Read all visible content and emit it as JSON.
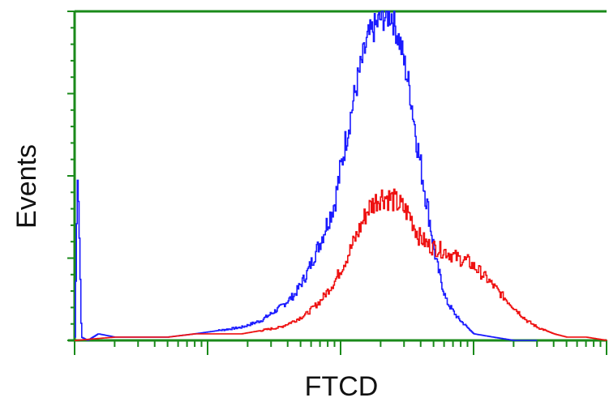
{
  "chart_data": {
    "type": "line",
    "title": "",
    "xlabel": "FTCD",
    "ylabel": "Events",
    "xscale": "log",
    "xlim": [
      1,
      10000
    ],
    "ylim": [
      0,
      100
    ],
    "grid": false,
    "legend": "none",
    "axis_color": "#1a8a1a",
    "series": [
      {
        "color": "#1a1aff",
        "x": [
          1,
          1.05,
          1.12,
          1.25,
          1.5,
          2,
          3,
          5,
          8,
          12,
          18,
          25,
          35,
          45,
          55,
          70,
          90,
          110,
          135,
          160,
          200,
          240,
          280,
          330,
          380,
          450,
          520,
          620,
          750,
          1000,
          1400,
          2000,
          3000
        ],
        "y": [
          1,
          55,
          1,
          0,
          2,
          1,
          1,
          1,
          2,
          3,
          4,
          6,
          10,
          14,
          20,
          30,
          42,
          62,
          80,
          92,
          98,
          99,
          90,
          76,
          58,
          40,
          24,
          12,
          7,
          2,
          1,
          0,
          0
        ]
      },
      {
        "color": "#ee1111",
        "x": [
          1,
          2,
          3,
          5,
          8,
          12,
          18,
          25,
          35,
          45,
          55,
          70,
          90,
          110,
          135,
          160,
          200,
          240,
          280,
          330,
          380,
          450,
          520,
          620,
          750,
          900,
          1100,
          1300,
          1600,
          2000,
          2500,
          3000,
          4000,
          5000,
          7000,
          10000
        ],
        "y": [
          0,
          1,
          1,
          1,
          2,
          2,
          2,
          3,
          4,
          6,
          8,
          12,
          18,
          25,
          33,
          40,
          44,
          43,
          41,
          38,
          32,
          29,
          28,
          27,
          25,
          24,
          21,
          18,
          14,
          10,
          6,
          4,
          2,
          1,
          1,
          0
        ]
      }
    ]
  }
}
